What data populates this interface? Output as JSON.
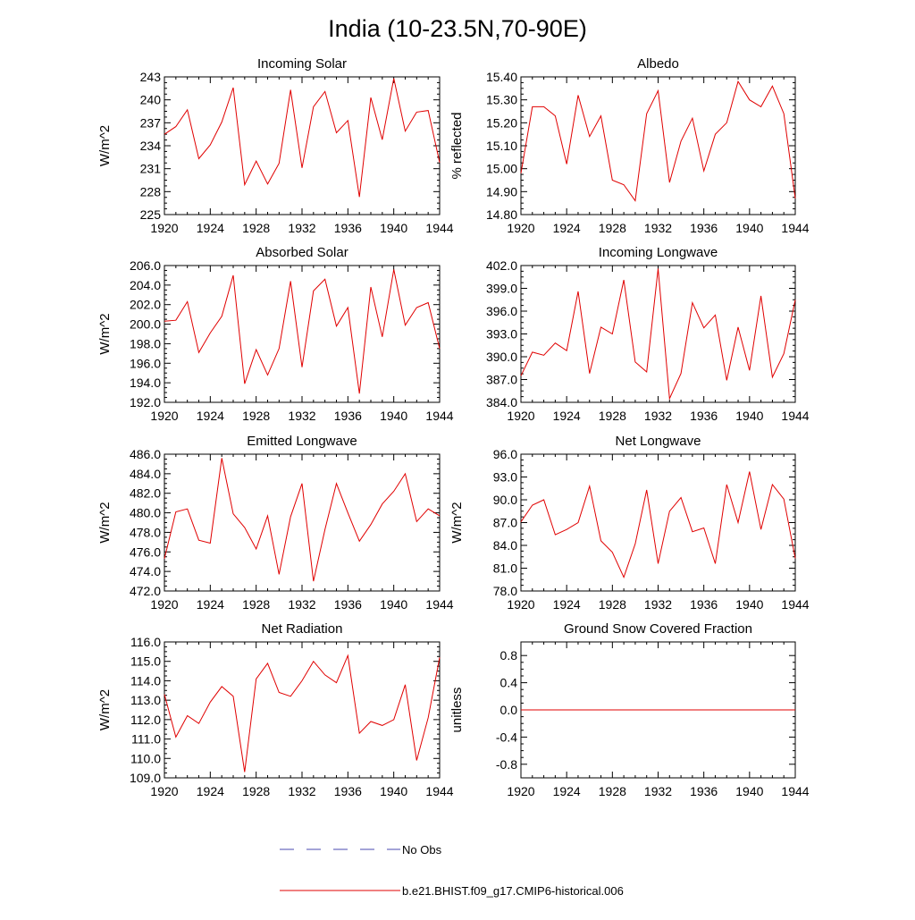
{
  "figure": {
    "title": "India (10-23.5N,70-90E)",
    "legend": [
      {
        "label": "No Obs",
        "color": "#4a4ab0",
        "style": "dashed"
      },
      {
        "label": "b.e21.BHIST.f09_g17.CMIP6-historical.006",
        "color": "#e00000",
        "style": "solid"
      }
    ]
  },
  "chart_data": [
    {
      "type": "line",
      "title": "Incoming Solar",
      "ylabel": "W/m^2",
      "xlim": [
        1920,
        1944
      ],
      "ylim": [
        225,
        243
      ],
      "yticks": [
        "225",
        "228",
        "231",
        "234",
        "237",
        "240",
        "243"
      ],
      "xticks": [
        "1920",
        "1924",
        "1928",
        "1932",
        "1936",
        "1940",
        "1944"
      ],
      "x": [
        1920,
        1921,
        1922,
        1923,
        1924,
        1925,
        1926,
        1927,
        1928,
        1929,
        1930,
        1931,
        1932,
        1933,
        1934,
        1935,
        1936,
        1937,
        1938,
        1939,
        1940,
        1941,
        1942,
        1943,
        1944
      ],
      "series": [
        {
          "name": "b.e21.BHIST.f09_g17.CMIP6-historical.006",
          "color": "#e00000",
          "values": [
            235.5,
            236.5,
            238.7,
            232.3,
            234.1,
            237.1,
            241.6,
            228.9,
            232.0,
            229.0,
            231.7,
            241.3,
            231.1,
            239.1,
            241.1,
            235.7,
            237.3,
            227.3,
            240.3,
            234.8,
            242.8,
            235.9,
            238.4,
            238.6,
            231.8
          ]
        }
      ]
    },
    {
      "type": "line",
      "title": "Albedo",
      "ylabel": "% reflected",
      "xlim": [
        1920,
        1944
      ],
      "ylim": [
        14.8,
        15.4
      ],
      "yticks": [
        "14.80",
        "14.90",
        "15.00",
        "15.10",
        "15.20",
        "15.30",
        "15.40"
      ],
      "xticks": [
        "1920",
        "1924",
        "1928",
        "1932",
        "1936",
        "1940",
        "1944"
      ],
      "x": [
        1920,
        1921,
        1922,
        1923,
        1924,
        1925,
        1926,
        1927,
        1928,
        1929,
        1930,
        1931,
        1932,
        1933,
        1934,
        1935,
        1936,
        1937,
        1938,
        1939,
        1940,
        1941,
        1942,
        1943,
        1944
      ],
      "series": [
        {
          "name": "b.e21.BHIST.f09_g17.CMIP6-historical.006",
          "color": "#e00000",
          "values": [
            14.98,
            15.27,
            15.27,
            15.23,
            15.02,
            15.32,
            15.14,
            15.23,
            14.95,
            14.93,
            14.86,
            15.24,
            15.34,
            14.94,
            15.12,
            15.22,
            14.99,
            15.15,
            15.2,
            15.38,
            15.3,
            15.27,
            15.36,
            15.24,
            14.87
          ]
        }
      ]
    },
    {
      "type": "line",
      "title": "Absorbed Solar",
      "ylabel": "W/m^2",
      "xlim": [
        1920,
        1944
      ],
      "ylim": [
        192,
        206
      ],
      "yticks": [
        "192.0",
        "194.0",
        "196.0",
        "198.0",
        "200.0",
        "202.0",
        "204.0",
        "206.0"
      ],
      "xticks": [
        "1920",
        "1924",
        "1928",
        "1932",
        "1936",
        "1940",
        "1944"
      ],
      "x": [
        1920,
        1921,
        1922,
        1923,
        1924,
        1925,
        1926,
        1927,
        1928,
        1929,
        1930,
        1931,
        1932,
        1933,
        1934,
        1935,
        1936,
        1937,
        1938,
        1939,
        1940,
        1941,
        1942,
        1943,
        1944
      ],
      "series": [
        {
          "name": "b.e21.BHIST.f09_g17.CMIP6-historical.006",
          "color": "#e00000",
          "values": [
            200.3,
            200.4,
            202.3,
            197.1,
            199.1,
            200.8,
            205.0,
            193.9,
            197.4,
            194.8,
            197.5,
            204.4,
            195.6,
            203.4,
            204.6,
            199.8,
            201.7,
            192.9,
            203.8,
            198.7,
            205.6,
            199.9,
            201.7,
            202.2,
            197.5
          ]
        }
      ]
    },
    {
      "type": "line",
      "title": "Incoming Longwave",
      "ylabel": "",
      "xlim": [
        1920,
        1944
      ],
      "ylim": [
        384,
        402
      ],
      "yticks": [
        "384.0",
        "387.0",
        "390.0",
        "393.0",
        "396.0",
        "399.0",
        "402.0"
      ],
      "xticks": [
        "1920",
        "1924",
        "1928",
        "1932",
        "1936",
        "1940",
        "1944"
      ],
      "x": [
        1920,
        1921,
        1922,
        1923,
        1924,
        1925,
        1926,
        1927,
        1928,
        1929,
        1930,
        1931,
        1932,
        1933,
        1934,
        1935,
        1936,
        1937,
        1938,
        1939,
        1940,
        1941,
        1942,
        1943,
        1944
      ],
      "series": [
        {
          "name": "b.e21.BHIST.f09_g17.CMIP6-historical.006",
          "color": "#e00000",
          "values": [
            387.5,
            390.6,
            390.2,
            391.8,
            390.8,
            398.6,
            387.8,
            393.9,
            393.0,
            400.1,
            389.3,
            388.0,
            401.6,
            384.5,
            387.8,
            397.1,
            393.8,
            395.5,
            386.9,
            393.9,
            388.2,
            398.0,
            387.3,
            390.4,
            397.5
          ]
        }
      ]
    },
    {
      "type": "line",
      "title": "Emitted Longwave",
      "ylabel": "W/m^2",
      "xlim": [
        1920,
        1944
      ],
      "ylim": [
        472,
        486
      ],
      "yticks": [
        "472.0",
        "474.0",
        "476.0",
        "478.0",
        "480.0",
        "482.0",
        "484.0",
        "486.0"
      ],
      "xticks": [
        "1920",
        "1924",
        "1928",
        "1932",
        "1936",
        "1940",
        "1944"
      ],
      "x": [
        1920,
        1921,
        1922,
        1923,
        1924,
        1925,
        1926,
        1927,
        1928,
        1929,
        1930,
        1931,
        1932,
        1933,
        1934,
        1935,
        1936,
        1937,
        1938,
        1939,
        1940,
        1941,
        1942,
        1943,
        1944
      ],
      "series": [
        {
          "name": "b.e21.BHIST.f09_g17.CMIP6-historical.006",
          "color": "#e00000",
          "values": [
            475.3,
            480.1,
            480.4,
            477.2,
            476.9,
            485.6,
            479.9,
            478.5,
            476.3,
            479.7,
            473.7,
            479.6,
            483.0,
            473.0,
            478.3,
            483.0,
            480.0,
            477.1,
            478.8,
            480.9,
            482.2,
            484.0,
            479.1,
            480.4,
            479.7
          ]
        }
      ]
    },
    {
      "type": "line",
      "title": "Net Longwave",
      "ylabel": "W/m^2",
      "xlim": [
        1920,
        1944
      ],
      "ylim": [
        78,
        96
      ],
      "yticks": [
        "78.0",
        "81.0",
        "84.0",
        "87.0",
        "90.0",
        "93.0",
        "96.0"
      ],
      "xticks": [
        "1920",
        "1924",
        "1928",
        "1932",
        "1936",
        "1940",
        "1944"
      ],
      "x": [
        1920,
        1921,
        1922,
        1923,
        1924,
        1925,
        1926,
        1927,
        1928,
        1929,
        1930,
        1931,
        1932,
        1933,
        1934,
        1935,
        1936,
        1937,
        1938,
        1939,
        1940,
        1941,
        1942,
        1943,
        1944
      ],
      "series": [
        {
          "name": "b.e21.BHIST.f09_g17.CMIP6-historical.006",
          "color": "#e00000",
          "values": [
            87.1,
            89.3,
            90.0,
            85.4,
            86.1,
            87.0,
            91.8,
            84.6,
            83.1,
            79.8,
            84.2,
            91.3,
            81.6,
            88.5,
            90.3,
            85.8,
            86.3,
            81.6,
            92.0,
            87.0,
            93.7,
            86.1,
            92.0,
            90.1,
            82.3
          ]
        }
      ]
    },
    {
      "type": "line",
      "title": "Net Radiation",
      "ylabel": "W/m^2",
      "xlim": [
        1920,
        1944
      ],
      "ylim": [
        109,
        116
      ],
      "yticks": [
        "109.0",
        "110.0",
        "111.0",
        "112.0",
        "113.0",
        "114.0",
        "115.0",
        "116.0"
      ],
      "xticks": [
        "1920",
        "1924",
        "1928",
        "1932",
        "1936",
        "1940",
        "1944"
      ],
      "x": [
        1920,
        1921,
        1922,
        1923,
        1924,
        1925,
        1926,
        1927,
        1928,
        1929,
        1930,
        1931,
        1932,
        1933,
        1934,
        1935,
        1936,
        1937,
        1938,
        1939,
        1940,
        1941,
        1942,
        1943,
        1944
      ],
      "series": [
        {
          "name": "b.e21.BHIST.f09_g17.CMIP6-historical.006",
          "color": "#e00000",
          "values": [
            113.3,
            111.1,
            112.2,
            111.8,
            112.9,
            113.7,
            113.2,
            109.3,
            114.1,
            114.9,
            113.4,
            113.2,
            114.0,
            115.0,
            114.3,
            113.9,
            115.3,
            111.3,
            111.9,
            111.7,
            112.0,
            113.8,
            109.9,
            112.1,
            115.2
          ]
        }
      ]
    },
    {
      "type": "line",
      "title": "Ground Snow Covered Fraction",
      "ylabel": "unitless",
      "xlim": [
        1920,
        1944
      ],
      "ylim": [
        -1.0,
        1.0
      ],
      "yticks": [
        "-0.8",
        "-0.4",
        "0.0",
        "0.4",
        "0.8"
      ],
      "ytick_values": [
        -0.8,
        -0.4,
        0.0,
        0.4,
        0.8
      ],
      "xticks": [
        "1920",
        "1924",
        "1928",
        "1932",
        "1936",
        "1940",
        "1944"
      ],
      "x": [
        1920,
        1921,
        1922,
        1923,
        1924,
        1925,
        1926,
        1927,
        1928,
        1929,
        1930,
        1931,
        1932,
        1933,
        1934,
        1935,
        1936,
        1937,
        1938,
        1939,
        1940,
        1941,
        1942,
        1943,
        1944
      ],
      "series": [
        {
          "name": "b.e21.BHIST.f09_g17.CMIP6-historical.006",
          "color": "#e00000",
          "values": [
            0,
            0,
            0,
            0,
            0,
            0,
            0,
            0,
            0,
            0,
            0,
            0,
            0,
            0,
            0,
            0,
            0,
            0,
            0,
            0,
            0,
            0,
            0,
            0,
            0
          ]
        }
      ]
    }
  ]
}
